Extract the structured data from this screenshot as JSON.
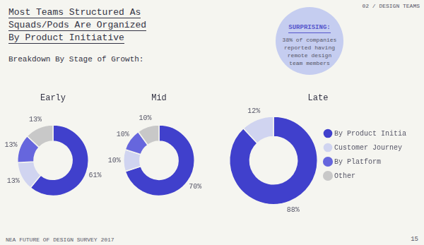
{
  "title": [
    "Most Teams Structured As",
    "Squads/Pods Are Organized",
    "By Product Initiative"
  ],
  "subtitle": "Breakdown By Stage of Growth:",
  "annotations": [
    "02 / DESIGN TEAMS",
    "SURPRISING:",
    "38% of companies\nreported having\nremote design\nteam members",
    "NEA  FUTURE OF DESIGN SURVEY 2017",
    "15"
  ],
  "chart_data": [
    {
      "type": "pie",
      "title": "Early",
      "categories": [
        "By Product Initiative",
        "Customer Journey",
        "By Platform",
        "Other"
      ],
      "values": [
        61,
        13,
        13,
        13
      ],
      "value_labels": [
        "61%",
        "13%",
        "13%",
        "13%"
      ],
      "colors": [
        "#4040cc",
        "#d0d4f0",
        "#6666dd",
        "#c8c8c8"
      ],
      "data_labels": true,
      "legend": false
    },
    {
      "type": "pie",
      "title": "Mid",
      "categories": [
        "By Product Initiative",
        "Customer Journey",
        "By Platform",
        "Other"
      ],
      "values": [
        70,
        10,
        10,
        10
      ],
      "value_labels": [
        "70%",
        "10%",
        "10%",
        "10%"
      ],
      "colors": [
        "#4040cc",
        "#d0d4f0",
        "#6666dd",
        "#c8c8c8"
      ],
      "data_labels": true,
      "legend": false
    },
    {
      "type": "pie",
      "title": "Late",
      "categories": [
        "By Product Initiative",
        "Customer Journey",
        "By Platform",
        "Other"
      ],
      "values": [
        88,
        12,
        0,
        0
      ],
      "value_labels": [
        "88%",
        "12%",
        null,
        null
      ],
      "colors": [
        "#4040cc",
        "#d0d4f0",
        "#6666dd",
        "#c8c8c8"
      ],
      "data_labels": true,
      "legend": "right"
    }
  ]
}
